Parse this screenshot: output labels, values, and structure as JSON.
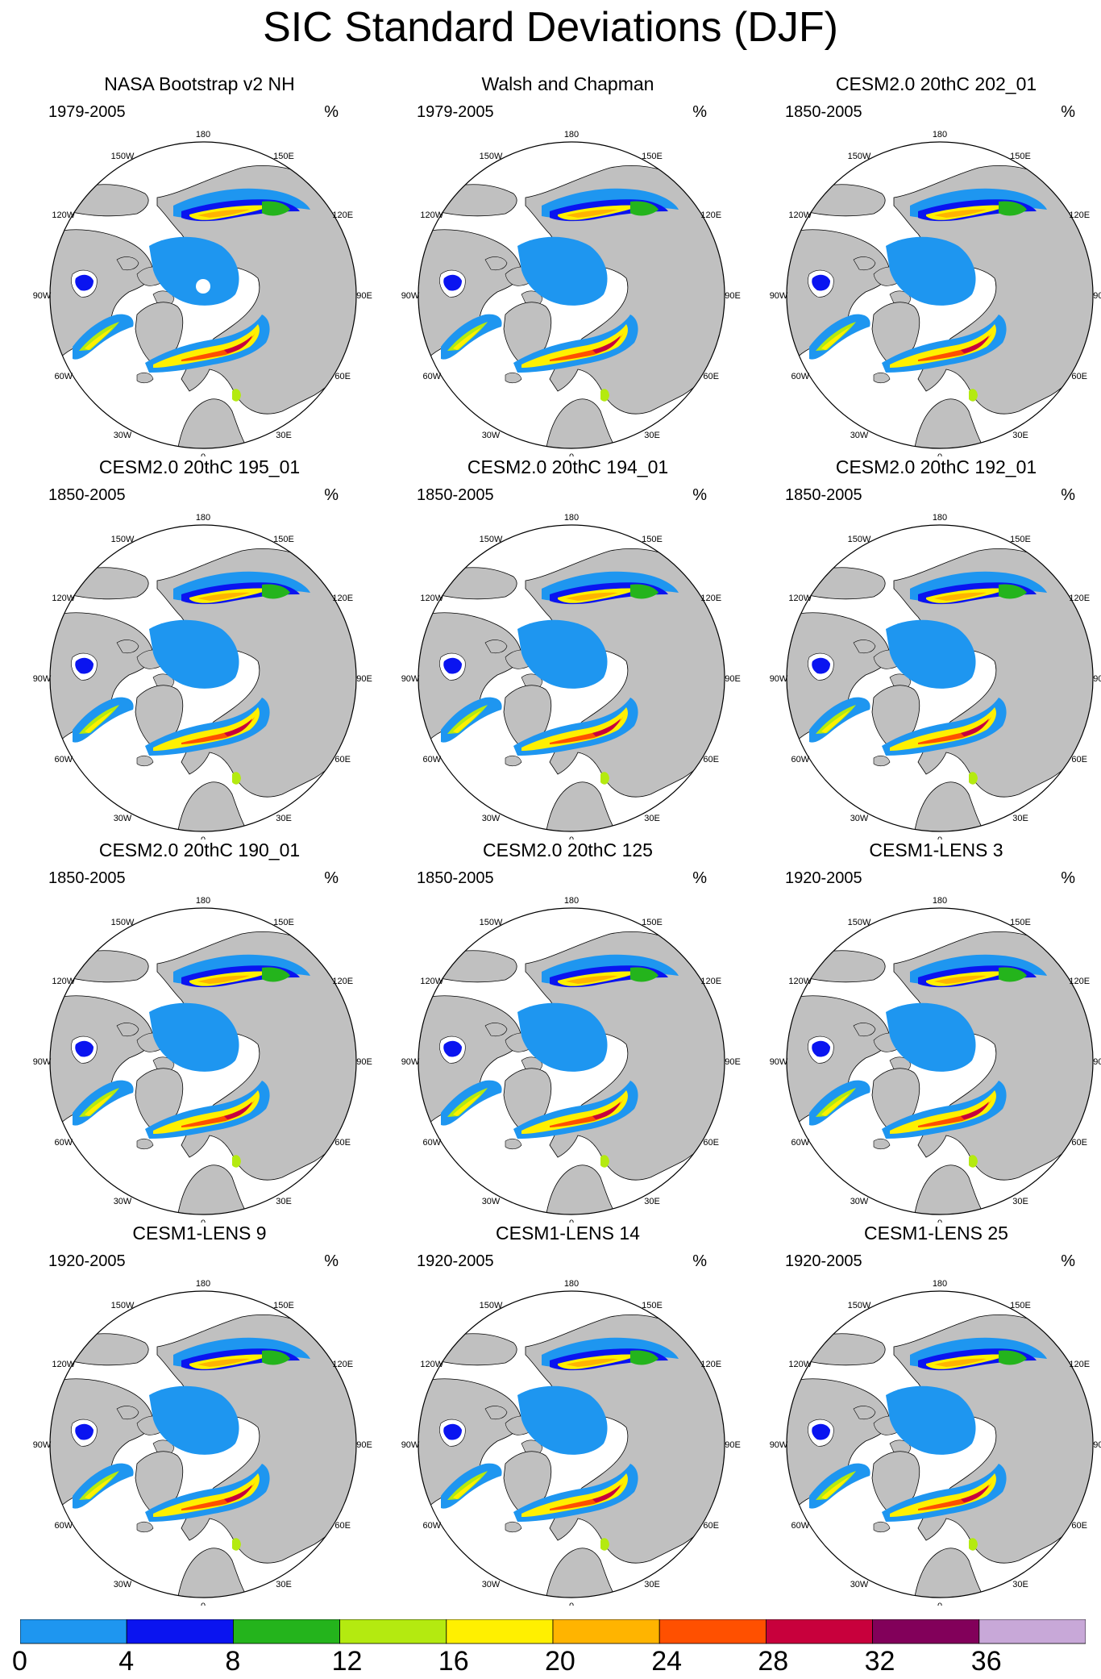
{
  "figure": {
    "title": "SIC Standard Deviations (DJF)"
  },
  "panels": [
    {
      "title": "NASA Bootstrap v2 NH",
      "period": "1979-2005",
      "units": "%",
      "pole_hole": true
    },
    {
      "title": "Walsh and Chapman",
      "period": "1979-2005",
      "units": "%"
    },
    {
      "title": "CESM2.0 20thC 202_01",
      "period": "1850-2005",
      "units": "%"
    },
    {
      "title": "CESM2.0 20thC 195_01",
      "period": "1850-2005",
      "units": "%"
    },
    {
      "title": "CESM2.0 20thC 194_01",
      "period": "1850-2005",
      "units": "%"
    },
    {
      "title": "CESM2.0 20thC 192_01",
      "period": "1850-2005",
      "units": "%"
    },
    {
      "title": "CESM2.0 20thC 190_01",
      "period": "1850-2005",
      "units": "%"
    },
    {
      "title": "CESM2.0 20thC 125",
      "period": "1850-2005",
      "units": "%"
    },
    {
      "title": "CESM1-LENS 3",
      "period": "1920-2005",
      "units": "%"
    },
    {
      "title": "CESM1-LENS 9",
      "period": "1920-2005",
      "units": "%"
    },
    {
      "title": "CESM1-LENS 14",
      "period": "1920-2005",
      "units": "%"
    },
    {
      "title": "CESM1-LENS 25",
      "period": "1920-2005",
      "units": "%"
    }
  ],
  "longitude_labels": [
    "180",
    "150E",
    "120E",
    "90E",
    "60E",
    "30E",
    "0",
    "30W",
    "60W",
    "90W",
    "120W",
    "150W"
  ],
  "colorbar": {
    "labels": [
      "0",
      "4",
      "8",
      "12",
      "16",
      "20",
      "24",
      "28",
      "32",
      "36"
    ],
    "colors": [
      "#1e96f0",
      "#0a14f0",
      "#24b41c",
      "#b4ea10",
      "#fff000",
      "#ffb400",
      "#ff5000",
      "#c8003c",
      "#82005a",
      "#c8a8d8"
    ]
  },
  "colors": {
    "land": "#c0c0c0",
    "ocean": "#ffffff",
    "ice_low": "#1e96f0"
  }
}
